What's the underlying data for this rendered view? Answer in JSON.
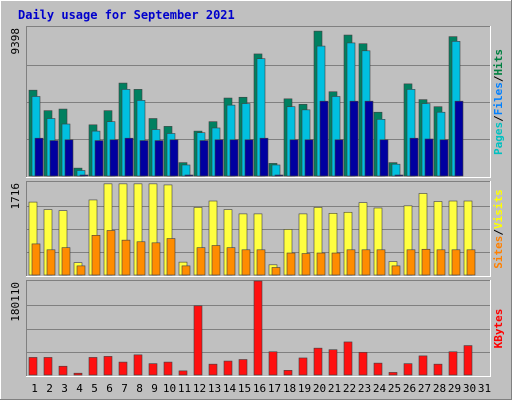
{
  "chart_data": {
    "type": "bar",
    "title": "Daily usage for September 2021",
    "days": [
      1,
      2,
      3,
      4,
      5,
      6,
      7,
      8,
      9,
      10,
      11,
      12,
      13,
      14,
      15,
      16,
      17,
      18,
      19,
      20,
      21,
      22,
      23,
      24,
      25,
      26,
      27,
      28,
      29,
      30,
      31
    ],
    "weekend_days": [
      4,
      5,
      11,
      12,
      18,
      19,
      25,
      26
    ],
    "panels": [
      {
        "name": "pages-files-hits",
        "ymax_label": "9398",
        "ymax": 9398,
        "gridlines": [
          2350,
          4700,
          7050
        ],
        "side_labels": [
          {
            "text": "Pages",
            "color": "#00c0c0"
          },
          {
            "text": "/",
            "color": "#000000"
          },
          {
            "text": "Files",
            "color": "#0080ff"
          },
          {
            "text": "/",
            "color": "#000000"
          },
          {
            "text": "Hits",
            "color": "#008040"
          }
        ],
        "series": [
          {
            "name": "Hits",
            "color": "#008060",
            "values": [
              5450,
              4150,
              4250,
              500,
              3250,
              4150,
              5900,
              5500,
              3650,
              3150,
              850,
              2850,
              3450,
              4950,
              5000,
              7750,
              800,
              4900,
              4550,
              9200,
              5350,
              8950,
              8400,
              4050,
              850,
              5850,
              4850,
              4400,
              8850,
              null,
              null
            ]
          },
          {
            "name": "Files",
            "color": "#00c0e0",
            "values": [
              5050,
              3650,
              3300,
              350,
              2850,
              3450,
              5500,
              4800,
              2950,
              2700,
              700,
              2750,
              3050,
              4500,
              4600,
              7450,
              700,
              4400,
              4200,
              8250,
              5050,
              8450,
              7950,
              3600,
              750,
              5500,
              4600,
              4050,
              8550,
              null,
              null
            ]
          },
          {
            "name": "Pages",
            "color": "#0000a0",
            "values": [
              2400,
              2250,
              2300,
              0,
              2250,
              2300,
              2400,
              2250,
              2250,
              2300,
              0,
              2250,
              2300,
              2300,
              2300,
              2400,
              0,
              2300,
              2300,
              4750,
              2300,
              4750,
              4750,
              2300,
              0,
              2400,
              2350,
              2300,
              4750,
              null,
              null
            ]
          }
        ]
      },
      {
        "name": "visits-sites",
        "ymax_label": "1716",
        "ymax": 1716,
        "gridlines": [
          429,
          858,
          1287
        ],
        "side_labels": [
          {
            "text": "Sites",
            "color": "#ff8000"
          },
          {
            "text": "/",
            "color": "#000000"
          },
          {
            "text": "Visits",
            "color": "#ffff00"
          }
        ],
        "series": [
          {
            "name": "Visits",
            "color": "#ffff40",
            "values": [
              1360,
              1220,
              1200,
              230,
              1400,
              1700,
              1700,
              1700,
              1700,
              1680,
              240,
              1260,
              1380,
              1220,
              1140,
              1140,
              190,
              850,
              1140,
              1260,
              1150,
              1170,
              1350,
              1250,
              250,
              1290,
              1520,
              1370,
              1380,
              1380,
              null
            ]
          },
          {
            "name": "Sites",
            "color": "#ff8c00",
            "values": [
              580,
              470,
              510,
              170,
              740,
              830,
              650,
              620,
              600,
              680,
              170,
              510,
              550,
              510,
              470,
              470,
              140,
              410,
              400,
              410,
              410,
              470,
              470,
              470,
              170,
              470,
              480,
              470,
              470,
              470,
              null
            ]
          }
        ]
      },
      {
        "name": "kbytes",
        "ymax_label": "180110",
        "ymax": 180110,
        "gridlines": [
          45000,
          90000,
          135000
        ],
        "side_labels": [
          {
            "text": "KBytes",
            "color": "#ff0000"
          }
        ],
        "series": [
          {
            "name": "KBytes",
            "color": "#ff1010",
            "values": [
              34000,
              34000,
              17000,
              3500,
              34000,
              36000,
              25000,
              39000,
              22000,
              25000,
              8000,
              134000,
              21000,
              27000,
              30000,
              182000,
              45000,
              9000,
              33000,
              52000,
              49000,
              64000,
              44000,
              23000,
              5000,
              22000,
              37000,
              21000,
              45000,
              57000,
              null
            ]
          }
        ]
      }
    ]
  }
}
